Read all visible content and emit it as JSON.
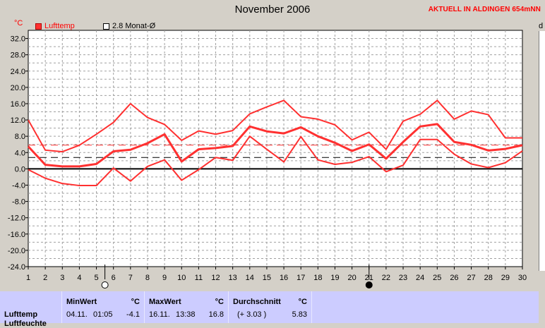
{
  "header": {
    "title": "November 2006",
    "station": "AKTUELL IN ALDINGEN 654mNN",
    "unit": "°C",
    "side_letter": "d"
  },
  "legend": {
    "series_label": "Lufttemp",
    "reference_label": "2.8 Monat-Ø"
  },
  "colors": {
    "series": "#ff3030",
    "reference": "#000000",
    "background": "#d4d0c8",
    "table": "#ccccff"
  },
  "chart_data": {
    "type": "line",
    "title": "November 2006",
    "ylabel": "°C",
    "xlabel": "",
    "x": [
      1,
      2,
      3,
      4,
      5,
      6,
      7,
      8,
      9,
      10,
      11,
      12,
      13,
      14,
      15,
      16,
      17,
      18,
      19,
      20,
      21,
      22,
      23,
      24,
      25,
      26,
      27,
      28,
      29,
      30
    ],
    "xlim": [
      1,
      30
    ],
    "ylim": [
      -24,
      34
    ],
    "yticks": [
      32,
      28,
      24,
      20,
      16,
      12,
      8,
      4,
      0,
      -4,
      -8,
      -12,
      -16,
      -20,
      -24
    ],
    "grid": true,
    "series": [
      {
        "name": "Lufttemp",
        "style": "max",
        "values": [
          12.0,
          4.6,
          4.2,
          5.8,
          8.5,
          11.4,
          16.0,
          12.6,
          10.9,
          7.0,
          9.3,
          8.5,
          9.4,
          13.5,
          15.2,
          16.8,
          12.8,
          12.2,
          10.8,
          7.1,
          9.0,
          4.8,
          11.7,
          13.4,
          16.8,
          12.2,
          14.2,
          13.3,
          7.6,
          7.6
        ]
      },
      {
        "name": "Lufttemp",
        "style": "mean",
        "values": [
          5.5,
          1.0,
          0.6,
          0.6,
          1.2,
          4.3,
          4.7,
          6.3,
          8.5,
          1.8,
          4.8,
          5.1,
          5.6,
          10.4,
          9.2,
          8.7,
          10.2,
          8.0,
          6.4,
          4.4,
          6.0,
          2.5,
          6.6,
          10.4,
          11.0,
          6.6,
          5.9,
          4.5,
          4.9,
          5.8
        ]
      },
      {
        "name": "Lufttemp",
        "style": "min",
        "values": [
          -0.2,
          -2.3,
          -3.6,
          -4.1,
          -4.1,
          0.2,
          -3.0,
          0.6,
          2.2,
          -2.8,
          -0.2,
          2.8,
          2.1,
          8.0,
          4.8,
          1.7,
          7.9,
          2.2,
          1.1,
          1.6,
          3.0,
          -0.7,
          0.9,
          7.2,
          7.2,
          3.6,
          1.2,
          0.3,
          1.5,
          4.4
        ]
      }
    ],
    "reference_lines": [
      {
        "label": "2.8 Monat-Ø",
        "value": 2.8
      },
      {
        "value": 5.83
      }
    ],
    "markers": [
      {
        "x": 5.5,
        "symbol": "empty-circle"
      },
      {
        "x": 21,
        "symbol": "filled-circle"
      }
    ]
  },
  "table": {
    "row_label": "Lufttemp",
    "row_label_2": "Luftfeuchte",
    "unit": "°C",
    "min": {
      "header": "MinWert",
      "date": "04.11.",
      "time": "01:05",
      "value": "-4.1"
    },
    "max": {
      "header": "MaxWert",
      "date": "16.11.",
      "time": "13:38",
      "value": "16.8"
    },
    "avg": {
      "header": "Durchschnitt",
      "delta": "(+ 3.03 )",
      "value": "5.83"
    }
  }
}
